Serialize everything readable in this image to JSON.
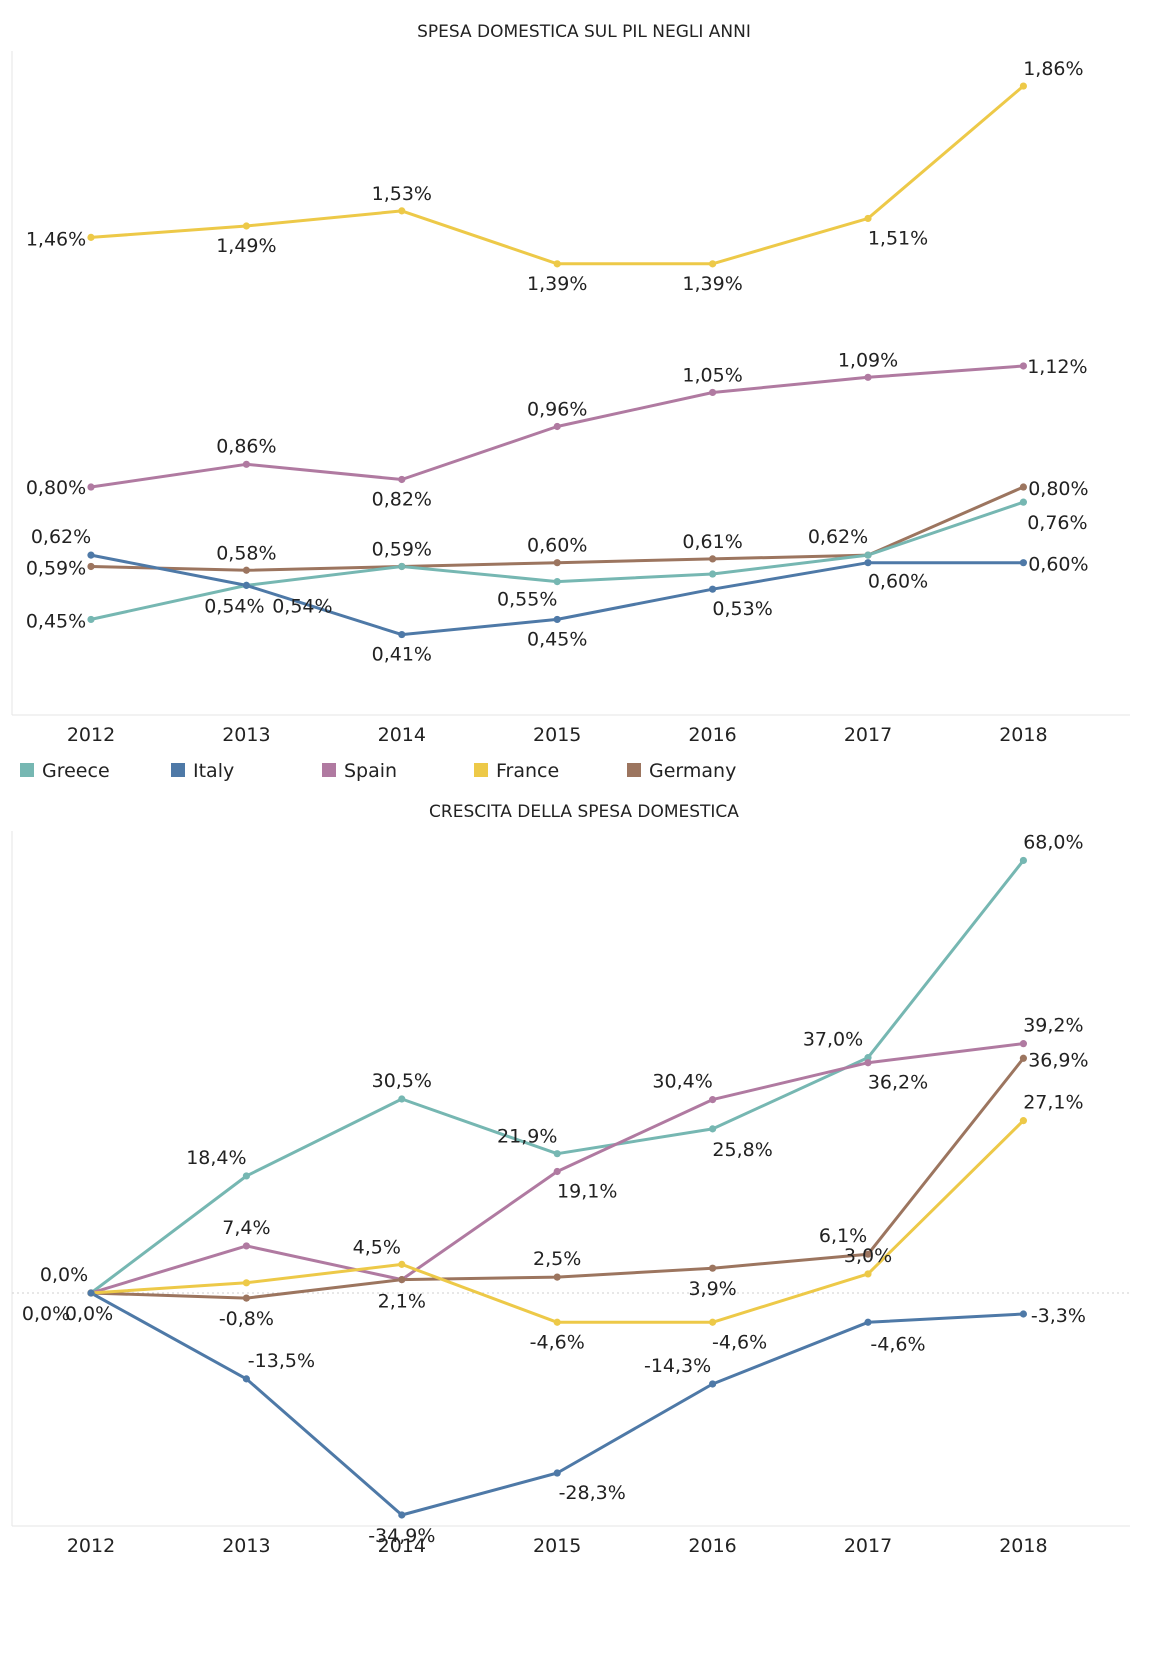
{
  "legend": [
    {
      "name": "Greece",
      "color": "#76b7b2"
    },
    {
      "name": "Italy",
      "color": "#4e79a7"
    },
    {
      "name": "Spain",
      "color": "#b07aa1"
    },
    {
      "name": "France",
      "color": "#edc948"
    },
    {
      "name": "Germany",
      "color": "#9c755f"
    }
  ],
  "chart_data": [
    {
      "type": "line",
      "title": "SPESA DOMESTICA SUL PIL NEGLI ANNI",
      "xlabel": "",
      "ylabel": "",
      "unit": "%",
      "decimals": 2,
      "categories": [
        "2012",
        "2013",
        "2014",
        "2015",
        "2016",
        "2017",
        "2018"
      ],
      "ylim": [
        0.2,
        1.95
      ],
      "grid": false,
      "series": [
        {
          "name": "France",
          "color": "#edc948",
          "values": [
            1.46,
            1.49,
            1.53,
            1.39,
            1.39,
            1.51,
            1.86
          ]
        },
        {
          "name": "Spain",
          "color": "#b07aa1",
          "values": [
            0.8,
            0.86,
            0.82,
            0.96,
            1.05,
            1.09,
            1.12
          ]
        },
        {
          "name": "Germany",
          "color": "#9c755f",
          "values": [
            0.59,
            0.58,
            0.59,
            0.6,
            0.61,
            0.62,
            0.8
          ]
        },
        {
          "name": "Greece",
          "color": "#76b7b2",
          "values": [
            0.45,
            0.54,
            0.59,
            0.55,
            0.57,
            0.62,
            0.76
          ]
        },
        {
          "name": "Italy",
          "color": "#4e79a7",
          "values": [
            0.62,
            0.54,
            0.41,
            0.45,
            0.53,
            0.6,
            0.6
          ]
        }
      ],
      "labels": [
        {
          "text": "1,46%"
        },
        {
          "text": "1,49%"
        },
        {
          "text": "1,53%"
        },
        {
          "text": "1,39%"
        },
        {
          "text": "1,39%"
        },
        {
          "text": "1,51%"
        },
        {
          "text": "1,86%"
        },
        {
          "text": "0,80%"
        },
        {
          "text": "0,86%"
        },
        {
          "text": "0,82%"
        },
        {
          "text": "0,96%"
        },
        {
          "text": "1,05%"
        },
        {
          "text": "1,09%"
        },
        {
          "text": "1,12%"
        },
        {
          "text": "0,59%"
        },
        {
          "text": "0,58%"
        },
        {
          "text": "0,59%"
        },
        {
          "text": "0,60%"
        },
        {
          "text": "0,61%"
        },
        {
          "text": "0,62%"
        },
        {
          "text": "0,80%"
        },
        {
          "text": "0,45%"
        },
        {
          "text": "0,54%"
        },
        {
          "text": "0,55%"
        },
        {
          "text": "0,76%"
        },
        {
          "text": "0,62%"
        },
        {
          "text": "0,54%"
        },
        {
          "text": "0,41%"
        },
        {
          "text": "0,45%"
        },
        {
          "text": "0,53%"
        },
        {
          "text": "0,60%"
        },
        {
          "text": "0,60%"
        }
      ]
    },
    {
      "type": "line",
      "title": "CRESCITA DELLA SPESA DOMESTICA",
      "xlabel": "",
      "ylabel": "",
      "unit": "%",
      "decimals": 1,
      "categories": [
        "2012",
        "2013",
        "2014",
        "2015",
        "2016",
        "2017",
        "2018"
      ],
      "ylim": [
        -36,
        72
      ],
      "zero_line": true,
      "grid": false,
      "series": [
        {
          "name": "Greece",
          "color": "#76b7b2",
          "values": [
            0.0,
            18.4,
            30.5,
            21.9,
            25.8,
            37.0,
            68.0
          ]
        },
        {
          "name": "Spain",
          "color": "#b07aa1",
          "values": [
            0.0,
            7.4,
            2.1,
            19.1,
            30.4,
            36.2,
            39.2
          ]
        },
        {
          "name": "Germany",
          "color": "#9c755f",
          "values": [
            0.0,
            -0.8,
            2.1,
            2.5,
            3.9,
            6.1,
            36.9
          ]
        },
        {
          "name": "France",
          "color": "#edc948",
          "values": [
            0.0,
            1.6,
            4.5,
            -4.6,
            -4.6,
            3.0,
            27.1
          ]
        },
        {
          "name": "Italy",
          "color": "#4e79a7",
          "values": [
            0.0,
            -13.5,
            -34.9,
            -28.3,
            -14.3,
            -4.6,
            -3.3
          ]
        }
      ],
      "labels": [
        {
          "text": "0,0%"
        },
        {
          "text": "18,4%"
        },
        {
          "text": "30,5%"
        },
        {
          "text": "21,9%"
        },
        {
          "text": "25,8%"
        },
        {
          "text": "37,0%"
        },
        {
          "text": "68,0%"
        },
        {
          "text": "0,0%"
        },
        {
          "text": "7,4%"
        },
        {
          "text": "19,1%"
        },
        {
          "text": "30,4%"
        },
        {
          "text": "36,2%"
        },
        {
          "text": "39,2%"
        },
        {
          "text": "-0,8%"
        },
        {
          "text": "2,1%"
        },
        {
          "text": "2,5%"
        },
        {
          "text": "3,9%"
        },
        {
          "text": "6,1%"
        },
        {
          "text": "36,9%"
        },
        {
          "text": "4,5%"
        },
        {
          "text": "-4,6%"
        },
        {
          "text": "-4,6%"
        },
        {
          "text": "3,0%"
        },
        {
          "text": "27,1%"
        },
        {
          "text": "0,0%"
        },
        {
          "text": "-13,5%"
        },
        {
          "text": "-34,9%"
        },
        {
          "text": "-28,3%"
        },
        {
          "text": "-14,3%"
        },
        {
          "text": "-4,6%"
        },
        {
          "text": "-3,3%"
        }
      ]
    }
  ]
}
